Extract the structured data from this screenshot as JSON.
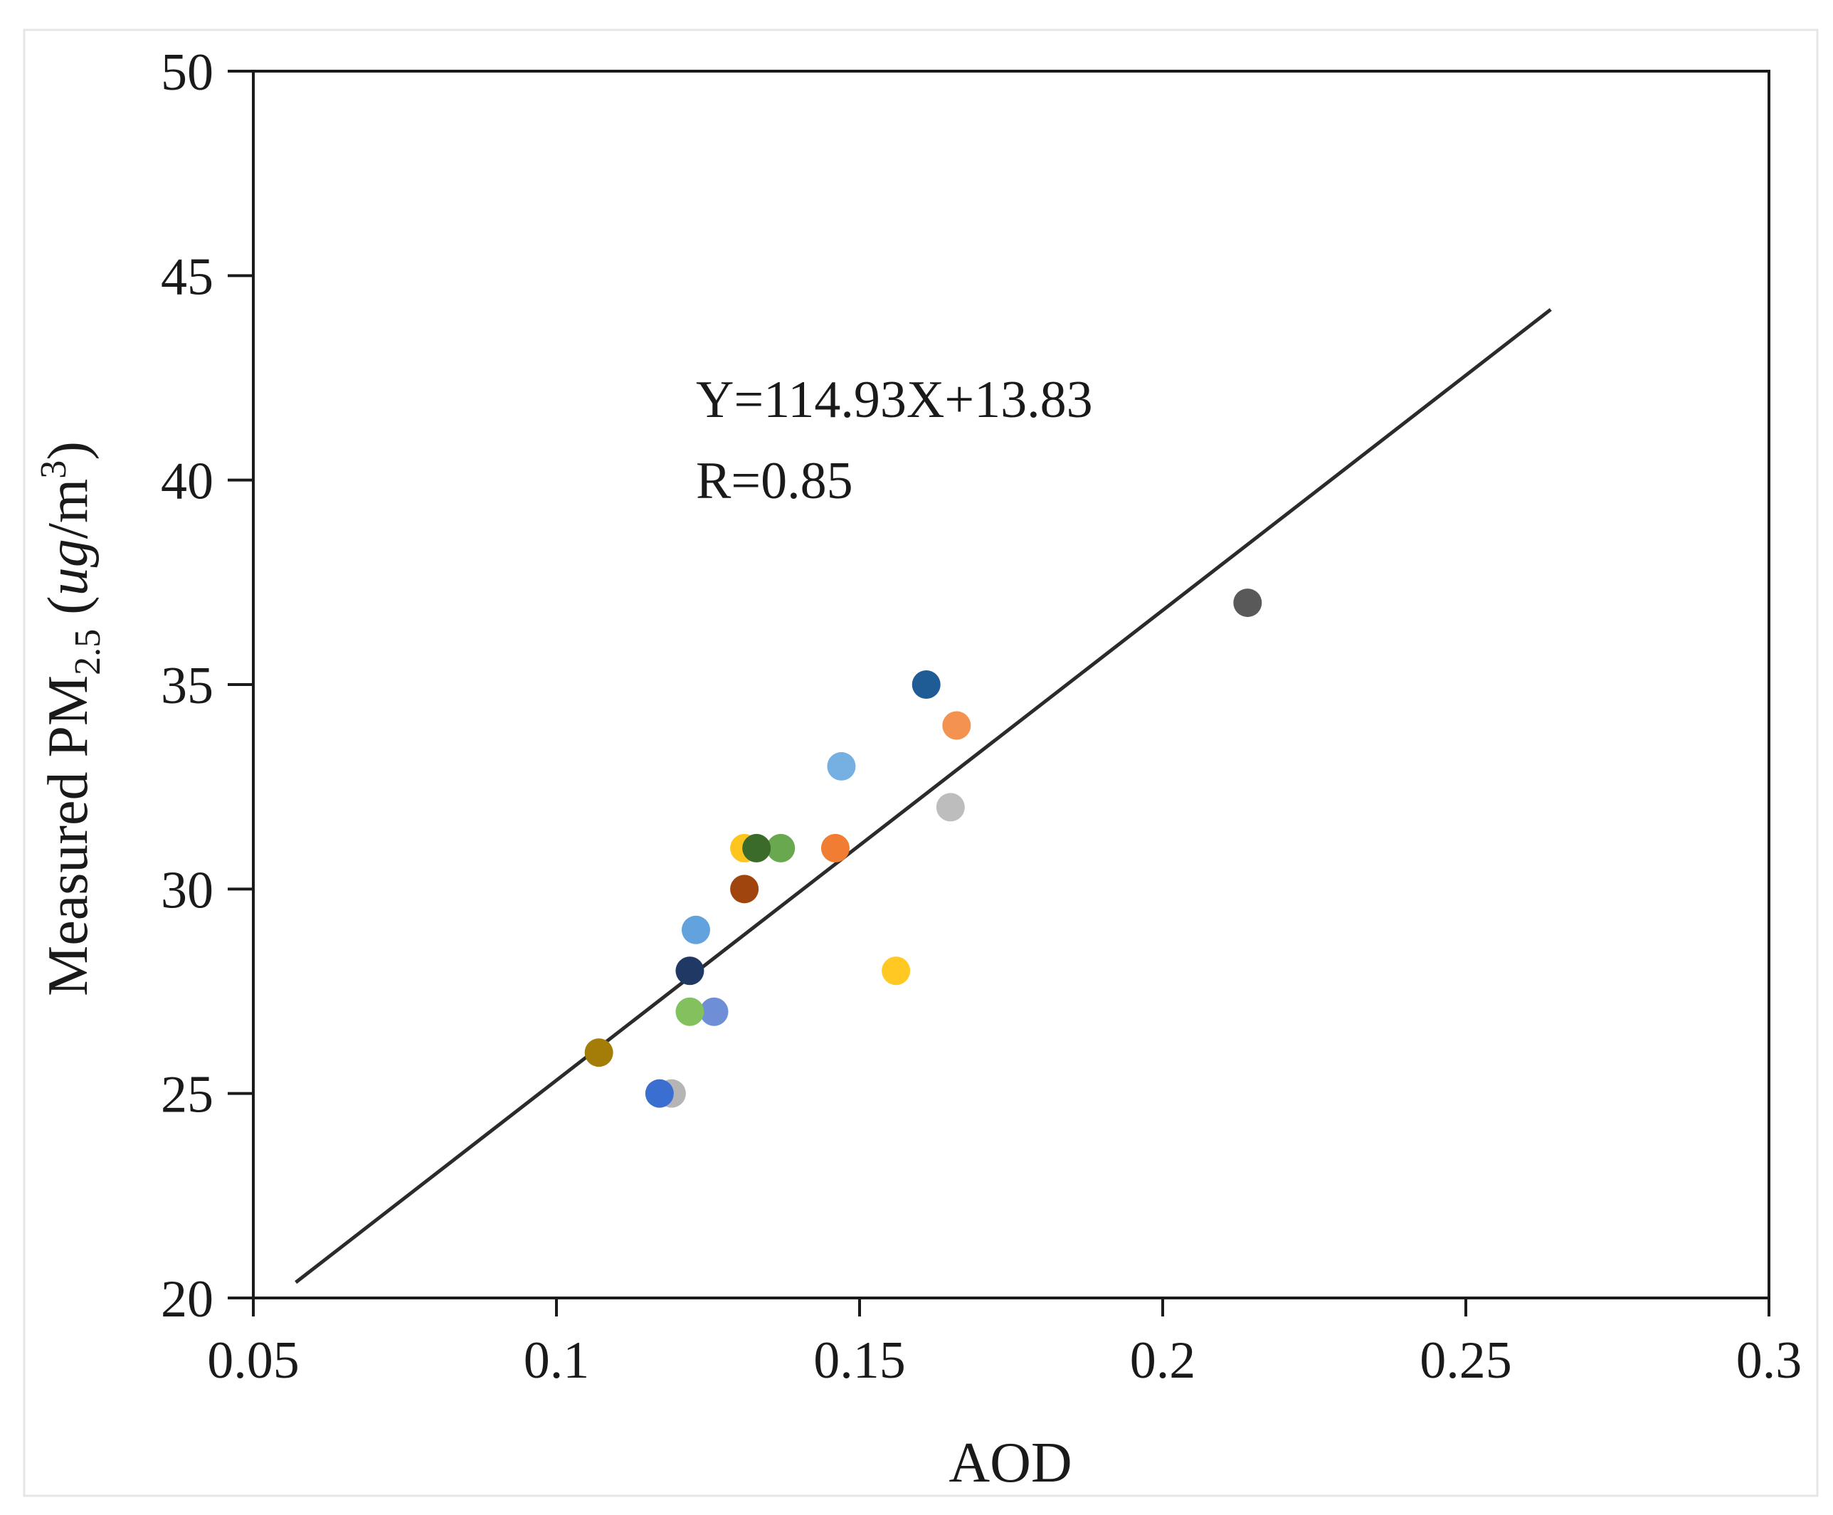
{
  "chart_data": {
    "type": "scatter",
    "title": "",
    "xlabel": "AOD",
    "ylabel": {
      "prefix": "Measured PM",
      "subscript": "2.5",
      "unit_open": " (",
      "unit_italic": "ug",
      "unit_mid": "/m",
      "unit_sup": "3",
      "unit_close": ")"
    },
    "xlim": [
      0.05,
      0.3
    ],
    "ylim": [
      20,
      50
    ],
    "xticks": [
      0.05,
      0.1,
      0.15,
      0.2,
      0.25,
      0.3
    ],
    "xtick_labels": [
      "0.05",
      "0.1",
      "0.15",
      "0.2",
      "0.25",
      "0.3"
    ],
    "yticks": [
      20,
      25,
      30,
      35,
      40,
      45,
      50
    ],
    "ytick_labels": [
      "20",
      "25",
      "30",
      "35",
      "40",
      "45",
      "50"
    ],
    "grid": false,
    "legend": "none",
    "annotations": [
      "Y=114.93X+13.83",
      "R=0.85"
    ],
    "fit_line": {
      "slope": 114.93,
      "intercept": 13.83,
      "x_range": [
        0.057,
        0.264
      ],
      "color": "#2b2b2b"
    },
    "points": [
      {
        "x": 0.214,
        "y": 37,
        "color": "#595959"
      },
      {
        "x": 0.161,
        "y": 35,
        "color": "#1f5b94"
      },
      {
        "x": 0.166,
        "y": 34,
        "color": "#f49250"
      },
      {
        "x": 0.147,
        "y": 33,
        "color": "#76b0e2"
      },
      {
        "x": 0.165,
        "y": 32,
        "color": "#bdbdbd"
      },
      {
        "x": 0.131,
        "y": 31,
        "color": "#ffc51f"
      },
      {
        "x": 0.137,
        "y": 31,
        "color": "#6aa84f"
      },
      {
        "x": 0.133,
        "y": 31,
        "color": "#3b6b2a"
      },
      {
        "x": 0.146,
        "y": 31,
        "color": "#f07d32"
      },
      {
        "x": 0.131,
        "y": 30,
        "color": "#a1450e"
      },
      {
        "x": 0.123,
        "y": 29,
        "color": "#63a3dd"
      },
      {
        "x": 0.122,
        "y": 28,
        "color": "#203864"
      },
      {
        "x": 0.156,
        "y": 28,
        "color": "#ffc823"
      },
      {
        "x": 0.126,
        "y": 27,
        "color": "#6e8fd8"
      },
      {
        "x": 0.122,
        "y": 27,
        "color": "#82c15d"
      },
      {
        "x": 0.107,
        "y": 26,
        "color": "#a47d08"
      },
      {
        "x": 0.119,
        "y": 25,
        "color": "#b5b5b5"
      },
      {
        "x": 0.117,
        "y": 25,
        "color": "#3a6fd1"
      }
    ]
  }
}
